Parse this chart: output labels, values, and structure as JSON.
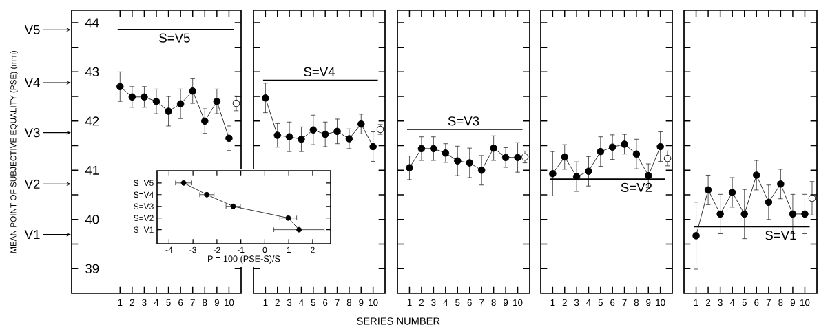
{
  "chart_data": [
    {
      "type": "line",
      "ylabel": "MEAN POINT OF SUBJECTIVE EQUALITY (PSE) (mm)",
      "annotations": [
        "V1",
        "V2",
        "V3",
        "V4",
        "V5"
      ],
      "x": [
        1,
        2,
        3,
        4,
        5,
        6,
        7,
        8,
        9,
        10,
        10.6
      ],
      "xlim": [
        -3,
        11
      ],
      "xticks": [
        1,
        2,
        3,
        4,
        5,
        6,
        7,
        8,
        9,
        10
      ],
      "ylim": [
        38.5,
        44.25
      ],
      "yticks": [
        39,
        {
          "value": 39.5,
          "label": null
        },
        40,
        {
          "value": 40.5,
          "label": null
        },
        41,
        {
          "value": 41.5,
          "label": null
        },
        42,
        {
          "value": 42.5,
          "label": null
        },
        43,
        {
          "value": 43.5,
          "label": null
        },
        44
      ],
      "marker": "circle",
      "line_style": "solid",
      "series": [
        {
          "color": "#000000",
          "values": [
            42.7,
            42.49,
            42.49,
            42.4,
            42.2,
            42.35,
            42.61,
            42.0,
            42.4,
            41.65,
            null
          ],
          "errors": [
            0.3,
            0.21,
            0.21,
            0.25,
            0.3,
            0.3,
            0.25,
            0.25,
            0.25,
            0.25,
            null
          ]
        },
        {
          "type": "scatter",
          "color": "#000000",
          "values": [
            null,
            null,
            null,
            null,
            null,
            null,
            null,
            null,
            null,
            null,
            42.36
          ],
          "errors": [
            null,
            null,
            null,
            null,
            null,
            null,
            null,
            null,
            null,
            null,
            0.15
          ]
        }
      ],
      "ref_lines": [
        {
          "axis": "y",
          "value": 43.86,
          "label": "S=V5"
        }
      ]
    },
    {
      "type": "line",
      "x": [
        1,
        2,
        3,
        4,
        5,
        6,
        7,
        8,
        9,
        10,
        10.6
      ],
      "xlim": [
        0,
        11
      ],
      "xticks": [
        1,
        2,
        3,
        4,
        5,
        6,
        7,
        8,
        9,
        10
      ],
      "ylim": [
        38.5,
        44.25
      ],
      "yticks": [
        39,
        39.5,
        40,
        40.5,
        41,
        41.5,
        42,
        42.5,
        43,
        43.5,
        44
      ],
      "tick_labels": "x",
      "marker": "circle",
      "line_style": "solid",
      "series": [
        {
          "color": "#000000",
          "values": [
            42.47,
            41.71,
            41.68,
            41.63,
            41.82,
            41.73,
            41.79,
            41.64,
            41.94,
            41.48,
            null
          ],
          "errors": [
            0.3,
            0.24,
            0.3,
            0.25,
            0.3,
            0.25,
            0.25,
            0.2,
            0.2,
            0.3,
            null
          ]
        },
        {
          "type": "scatter",
          "color": "#000000",
          "values": [
            null,
            null,
            null,
            null,
            null,
            null,
            null,
            null,
            null,
            null,
            41.83
          ],
          "errors": [
            null,
            null,
            null,
            null,
            null,
            null,
            null,
            null,
            null,
            null,
            0.1
          ]
        }
      ],
      "ref_lines": [
        {
          "axis": "y",
          "value": 42.83,
          "label": "S=V4"
        }
      ]
    },
    {
      "type": "line",
      "xlabel": "SERIES NUMBER",
      "x": [
        1,
        2,
        3,
        4,
        5,
        6,
        7,
        8,
        9,
        10,
        10.6
      ],
      "xlim": [
        0,
        11
      ],
      "xticks": [
        1,
        2,
        3,
        4,
        5,
        6,
        7,
        8,
        9,
        10
      ],
      "ylim": [
        38.5,
        44.25
      ],
      "yticks": [
        39,
        39.5,
        40,
        40.5,
        41,
        41.5,
        42,
        42.5,
        43,
        43.5,
        44
      ],
      "tick_labels": "x",
      "marker": "circle",
      "line_style": "solid",
      "series": [
        {
          "color": "#000000",
          "values": [
            41.05,
            41.44,
            41.44,
            41.35,
            41.19,
            41.15,
            41.0,
            41.45,
            41.26,
            41.26,
            null
          ],
          "errors": [
            0.24,
            0.24,
            0.24,
            0.19,
            0.3,
            0.3,
            0.3,
            0.25,
            0.2,
            0.3,
            null
          ]
        },
        {
          "type": "scatter",
          "color": "#000000",
          "values": [
            null,
            null,
            null,
            null,
            null,
            null,
            null,
            null,
            null,
            null,
            41.27
          ],
          "errors": [
            null,
            null,
            null,
            null,
            null,
            null,
            null,
            null,
            null,
            null,
            0.12
          ]
        }
      ],
      "ref_lines": [
        {
          "axis": "y",
          "value": 41.83,
          "label": "S=V3"
        }
      ]
    },
    {
      "type": "line",
      "x": [
        1,
        2,
        3,
        4,
        5,
        6,
        7,
        8,
        9,
        10,
        10.6
      ],
      "xlim": [
        0,
        11
      ],
      "xticks": [
        1,
        2,
        3,
        4,
        5,
        6,
        7,
        8,
        9,
        10
      ],
      "ylim": [
        38.5,
        44.25
      ],
      "yticks": [
        39,
        39.5,
        40,
        40.5,
        41,
        41.5,
        42,
        42.5,
        43,
        43.5,
        44
      ],
      "tick_labels": "x",
      "marker": "circle",
      "line_style": "solid",
      "series": [
        {
          "color": "#000000",
          "values": [
            40.93,
            41.27,
            40.87,
            40.98,
            41.38,
            41.47,
            41.53,
            41.33,
            40.89,
            41.48,
            null
          ],
          "errors": [
            0.45,
            0.25,
            0.3,
            0.3,
            0.3,
            0.25,
            0.2,
            0.3,
            0.24,
            0.3,
            null
          ]
        },
        {
          "type": "scatter",
          "color": "#000000",
          "values": [
            null,
            null,
            null,
            null,
            null,
            null,
            null,
            null,
            null,
            null,
            41.24
          ],
          "errors": [
            null,
            null,
            null,
            null,
            null,
            null,
            null,
            null,
            null,
            null,
            0.15
          ]
        }
      ],
      "ref_lines": [
        {
          "axis": "y",
          "value": 40.82,
          "label": "S=V2"
        }
      ]
    },
    {
      "type": "line",
      "x": [
        1,
        2,
        3,
        4,
        5,
        6,
        7,
        8,
        9,
        10,
        10.6
      ],
      "xlim": [
        0,
        11
      ],
      "xticks": [
        1,
        2,
        3,
        4,
        5,
        6,
        7,
        8,
        9,
        10
      ],
      "ylim": [
        38.5,
        44.25
      ],
      "yticks": [
        39,
        39.5,
        40,
        40.5,
        41,
        41.5,
        42,
        42.5,
        43,
        43.5,
        44
      ],
      "tick_labels": "x",
      "marker": "circle",
      "line_style": "solid",
      "series": [
        {
          "color": "#000000",
          "values": [
            39.67,
            40.6,
            40.11,
            40.55,
            40.11,
            40.9,
            40.35,
            40.72,
            40.11,
            40.11,
            null
          ],
          "errors": [
            0.68,
            0.3,
            0.4,
            0.3,
            0.5,
            0.3,
            0.35,
            0.3,
            0.4,
            0.4,
            null
          ]
        },
        {
          "type": "scatter",
          "color": "#000000",
          "values": [
            null,
            null,
            null,
            null,
            null,
            null,
            null,
            null,
            null,
            null,
            40.43
          ],
          "errors": [
            null,
            null,
            null,
            null,
            null,
            null,
            null,
            null,
            null,
            null,
            0.34
          ]
        }
      ],
      "ref_lines": [
        {
          "axis": "y",
          "value": 39.85,
          "label": "S=V1"
        }
      ]
    },
    {
      "type": "line",
      "orientation": "horizontal",
      "xlabel": "P = 100 (PSE-S)/S",
      "categories": [
        "S=V5",
        "S=V4",
        "S=V3",
        "S=V2",
        "S=V1"
      ],
      "xlim": [
        -4.5,
        2.75
      ],
      "xticks": [
        -4,
        -3,
        -2,
        -1,
        0,
        1,
        2
      ],
      "marker": "circle",
      "line_style": "solid",
      "series": [
        {
          "color": "#000000",
          "values": [
            -3.39,
            -2.42,
            -1.32,
            0.98,
            1.43
          ],
          "errors": [
            0.34,
            0.3,
            0.3,
            0.35,
            1.05
          ]
        }
      ]
    }
  ]
}
